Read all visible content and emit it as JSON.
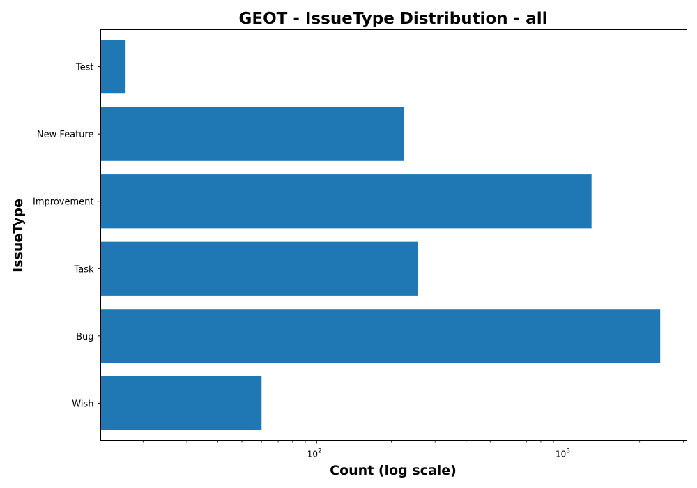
{
  "chart_data": {
    "type": "bar",
    "orientation": "horizontal",
    "title": "GEOT - IssueType Distribution - all",
    "xlabel": "Count (log scale)",
    "ylabel": "IssueType",
    "x_scale": "log",
    "xlim": [
      13.5,
      3100
    ],
    "categories": [
      "Test",
      "New Feature",
      "Improvement",
      "Task",
      "Bug",
      "Wish"
    ],
    "values": [
      17,
      225,
      1280,
      255,
      2420,
      60
    ],
    "x_ticks": [
      {
        "base": "10",
        "exp": "2",
        "value": 100
      },
      {
        "base": "10",
        "exp": "3",
        "value": 1000
      }
    ],
    "bar_color": "#1f77b4",
    "grid": false,
    "legend": false
  }
}
